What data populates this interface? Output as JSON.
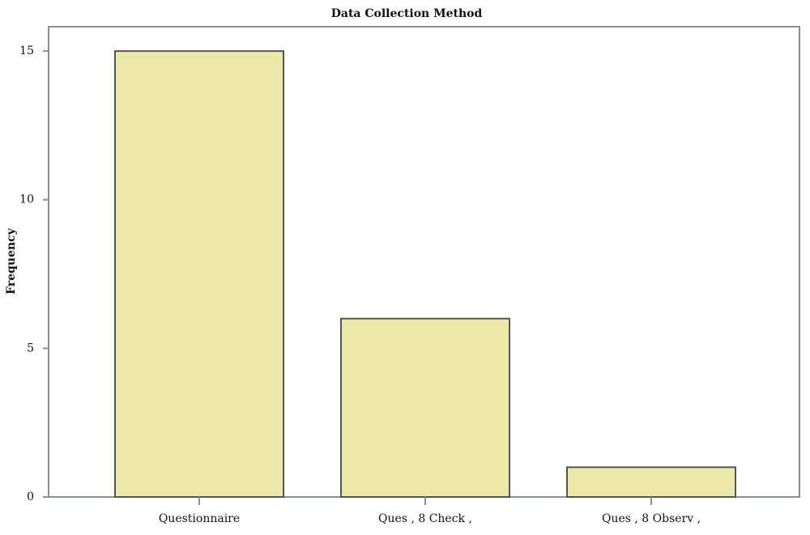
{
  "chart_data": {
    "type": "bar",
    "title": "Data Collection Method",
    "y_label": "Frequency",
    "categories": [
      "Questionnaire",
      "Ques , 8 Check ,",
      "Ques , 8 Observ ,"
    ],
    "values": [
      15,
      6,
      1
    ],
    "color": "#ede9a8",
    "ylim": [
      0,
      15.82
    ],
    "yticks": [
      0,
      5,
      10,
      15
    ]
  }
}
